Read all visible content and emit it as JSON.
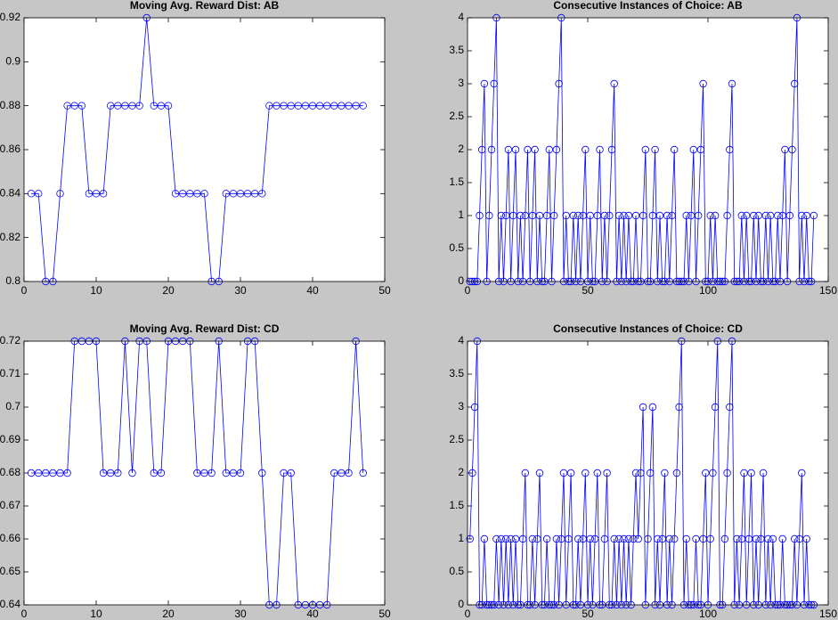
{
  "chart_data": [
    {
      "type": "line",
      "title": "Moving Avg. Reward Dist: AB",
      "color": "#0000ff",
      "marker": "circle",
      "x": [
        1,
        2,
        3,
        4,
        5,
        6,
        7,
        8,
        9,
        10,
        11,
        12,
        13,
        14,
        15,
        16,
        17,
        18,
        19,
        20,
        21,
        22,
        23,
        24,
        25,
        26,
        27,
        28,
        29,
        30,
        31,
        32,
        33,
        34,
        35,
        36,
        37,
        38,
        39,
        40,
        41,
        42,
        43,
        44,
        45,
        46,
        47
      ],
      "values": [
        0.84,
        0.84,
        0.8,
        0.8,
        0.84,
        0.88,
        0.88,
        0.88,
        0.84,
        0.84,
        0.84,
        0.88,
        0.88,
        0.88,
        0.88,
        0.88,
        0.92,
        0.88,
        0.88,
        0.88,
        0.84,
        0.84,
        0.84,
        0.84,
        0.84,
        0.8,
        0.8,
        0.84,
        0.84,
        0.84,
        0.84,
        0.84,
        0.84,
        0.88,
        0.88,
        0.88,
        0.88,
        0.88,
        0.88,
        0.88,
        0.88,
        0.88,
        0.88,
        0.88,
        0.88,
        0.88,
        0.88
      ],
      "xlim": [
        0,
        50
      ],
      "ylim": [
        0.8,
        0.92
      ],
      "xticks": [
        0,
        10,
        20,
        30,
        40,
        50
      ],
      "yticks": [
        0.8,
        0.82,
        0.84,
        0.86,
        0.88,
        0.9,
        0.92
      ]
    },
    {
      "type": "line",
      "title": "Consecutive Instances of Choice: AB",
      "color": "#0000ff",
      "marker": "circle",
      "x": [
        1,
        2,
        3,
        4,
        5,
        6,
        7,
        8,
        9,
        10,
        11,
        12,
        13,
        14,
        15,
        16,
        17,
        18,
        19,
        20,
        21,
        22,
        23,
        24,
        25,
        26,
        27,
        28,
        29,
        30,
        31,
        32,
        33,
        34,
        35,
        36,
        37,
        38,
        39,
        40,
        41,
        42,
        43,
        44,
        45,
        46,
        47,
        48,
        49,
        50,
        51,
        52,
        53,
        54,
        55,
        56,
        57,
        58,
        59,
        60,
        61,
        62,
        63,
        64,
        65,
        66,
        67,
        68,
        69,
        70,
        71,
        72,
        73,
        74,
        75,
        76,
        77,
        78,
        79,
        80,
        81,
        82,
        83,
        84,
        85,
        86,
        87,
        88,
        89,
        90,
        91,
        92,
        93,
        94,
        95,
        96,
        97,
        98,
        99,
        100,
        101,
        102,
        103,
        104,
        105,
        106,
        107,
        108,
        109,
        110,
        111,
        112,
        113,
        114,
        115,
        116,
        117,
        118,
        119,
        120,
        121,
        122,
        123,
        124,
        125,
        126,
        127,
        128,
        129,
        130,
        131,
        132,
        133,
        134,
        135,
        136,
        137,
        138,
        139,
        140,
        141,
        142,
        143,
        144
      ],
      "values": [
        0,
        0,
        0,
        0,
        1,
        2,
        3,
        0,
        1,
        2,
        3,
        4,
        0,
        1,
        0,
        1,
        2,
        0,
        1,
        2,
        0,
        1,
        0,
        1,
        2,
        0,
        1,
        2,
        0,
        1,
        0,
        0,
        1,
        2,
        0,
        1,
        2,
        3,
        4,
        0,
        1,
        0,
        0,
        1,
        0,
        1,
        0,
        1,
        2,
        0,
        1,
        0,
        0,
        1,
        2,
        0,
        1,
        0,
        1,
        2,
        3,
        0,
        1,
        0,
        1,
        0,
        1,
        0,
        0,
        1,
        0,
        0,
        1,
        2,
        0,
        0,
        1,
        2,
        0,
        1,
        0,
        0,
        1,
        0,
        1,
        2,
        0,
        0,
        0,
        0,
        1,
        0,
        1,
        2,
        0,
        1,
        2,
        3,
        0,
        0,
        1,
        0,
        1,
        0,
        0,
        0,
        0,
        1,
        2,
        3,
        0,
        0,
        0,
        1,
        0,
        1,
        0,
        0,
        1,
        0,
        1,
        0,
        0,
        1,
        0,
        1,
        0,
        0,
        1,
        0,
        1,
        2,
        0,
        1,
        2,
        3,
        4,
        0,
        1,
        0,
        1,
        0,
        0,
        1
      ],
      "xlim": [
        0,
        150
      ],
      "ylim": [
        0,
        4
      ],
      "xticks": [
        0,
        50,
        100,
        150
      ],
      "yticks": [
        0,
        0.5,
        1,
        1.5,
        2,
        2.5,
        3,
        3.5,
        4
      ]
    },
    {
      "type": "line",
      "title": "Moving Avg. Reward Dist: CD",
      "color": "#0000ff",
      "marker": "circle",
      "x": [
        1,
        2,
        3,
        4,
        5,
        6,
        7,
        8,
        9,
        10,
        11,
        12,
        13,
        14,
        15,
        16,
        17,
        18,
        19,
        20,
        21,
        22,
        23,
        24,
        25,
        26,
        27,
        28,
        29,
        30,
        31,
        32,
        33,
        34,
        35,
        36,
        37,
        38,
        39,
        40,
        41,
        42,
        43,
        44,
        45,
        46,
        47
      ],
      "values": [
        0.68,
        0.68,
        0.68,
        0.68,
        0.68,
        0.68,
        0.72,
        0.72,
        0.72,
        0.72,
        0.68,
        0.68,
        0.68,
        0.72,
        0.68,
        0.72,
        0.72,
        0.68,
        0.68,
        0.72,
        0.72,
        0.72,
        0.72,
        0.68,
        0.68,
        0.68,
        0.72,
        0.68,
        0.68,
        0.68,
        0.72,
        0.72,
        0.68,
        0.64,
        0.64,
        0.68,
        0.68,
        0.64,
        0.64,
        0.64,
        0.64,
        0.64,
        0.68,
        0.68,
        0.68,
        0.72,
        0.68
      ],
      "xlim": [
        0,
        50
      ],
      "ylim": [
        0.64,
        0.72
      ],
      "xticks": [
        0,
        10,
        20,
        30,
        40,
        50
      ],
      "yticks": [
        0.64,
        0.65,
        0.66,
        0.67,
        0.68,
        0.69,
        0.7,
        0.71,
        0.72
      ]
    },
    {
      "type": "line",
      "title": "Consecutive Instances of Choice: CD",
      "color": "#0000ff",
      "marker": "circle",
      "x": [
        1,
        2,
        3,
        4,
        5,
        6,
        7,
        8,
        9,
        10,
        11,
        12,
        13,
        14,
        15,
        16,
        17,
        18,
        19,
        20,
        21,
        22,
        23,
        24,
        25,
        26,
        27,
        28,
        29,
        30,
        31,
        32,
        33,
        34,
        35,
        36,
        37,
        38,
        39,
        40,
        41,
        42,
        43,
        44,
        45,
        46,
        47,
        48,
        49,
        50,
        51,
        52,
        53,
        54,
        55,
        56,
        57,
        58,
        59,
        60,
        61,
        62,
        63,
        64,
        65,
        66,
        67,
        68,
        69,
        70,
        71,
        72,
        73,
        74,
        75,
        76,
        77,
        78,
        79,
        80,
        81,
        82,
        83,
        84,
        85,
        86,
        87,
        88,
        89,
        90,
        91,
        92,
        93,
        94,
        95,
        96,
        97,
        98,
        99,
        100,
        101,
        102,
        103,
        104,
        105,
        106,
        107,
        108,
        109,
        110,
        111,
        112,
        113,
        114,
        115,
        116,
        117,
        118,
        119,
        120,
        121,
        122,
        123,
        124,
        125,
        126,
        127,
        128,
        129,
        130,
        131,
        132,
        133,
        134,
        135,
        136,
        137,
        138,
        139,
        140,
        141,
        142,
        143,
        144
      ],
      "values": [
        1,
        2,
        3,
        4,
        0,
        0,
        1,
        0,
        0,
        0,
        0,
        1,
        0,
        1,
        0,
        1,
        0,
        1,
        0,
        1,
        0,
        0,
        1,
        2,
        0,
        0,
        1,
        0,
        1,
        2,
        0,
        0,
        1,
        0,
        0,
        0,
        1,
        0,
        1,
        2,
        0,
        1,
        2,
        0,
        0,
        1,
        0,
        1,
        2,
        0,
        1,
        0,
        1,
        2,
        0,
        0,
        1,
        2,
        0,
        0,
        1,
        0,
        1,
        0,
        1,
        0,
        1,
        0,
        1,
        2,
        1,
        2,
        3,
        0,
        1,
        2,
        3,
        0,
        1,
        0,
        1,
        2,
        0,
        1,
        0,
        1,
        2,
        3,
        4,
        0,
        1,
        0,
        0,
        0,
        1,
        0,
        0,
        1,
        2,
        0,
        1,
        2,
        3,
        4,
        0,
        0,
        1,
        2,
        3,
        4,
        0,
        1,
        0,
        1,
        2,
        0,
        1,
        2,
        0,
        1,
        0,
        1,
        2,
        0,
        1,
        0,
        1,
        0,
        0,
        0,
        1,
        0,
        0,
        0,
        0,
        1,
        0,
        1,
        2,
        0,
        1,
        0,
        0,
        0
      ],
      "xlim": [
        0,
        150
      ],
      "ylim": [
        0,
        4
      ],
      "xticks": [
        0,
        50,
        100,
        150
      ],
      "yticks": [
        0,
        0.5,
        1,
        1.5,
        2,
        2.5,
        3,
        3.5,
        4
      ]
    }
  ]
}
